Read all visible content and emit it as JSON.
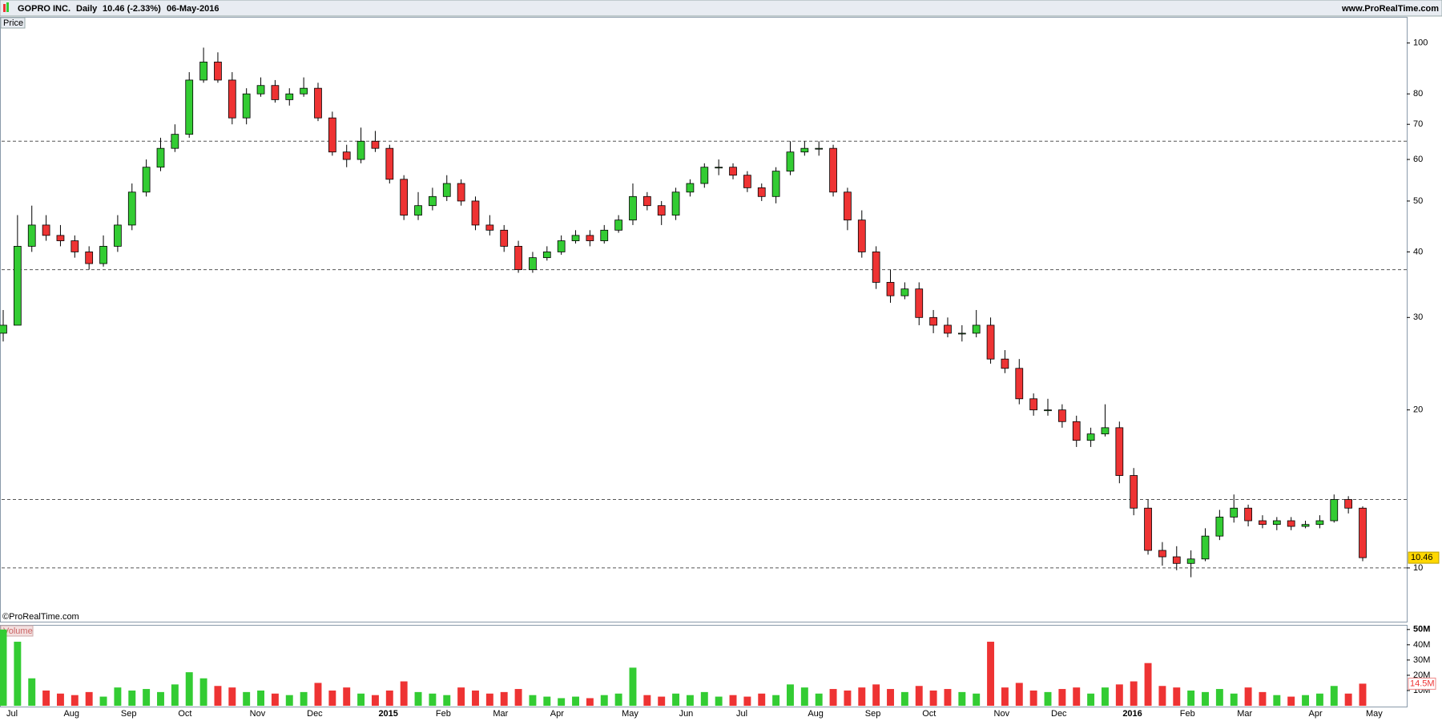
{
  "header": {
    "symbol": "GOPRO INC.",
    "period": "Daily",
    "quote": "10.46 (-2.33%)",
    "date": "06-May-2016",
    "site": "www.ProRealTime.com",
    "copyright": "©ProRealTime.com"
  },
  "chart_data": [
    {
      "type": "candlestick",
      "title": "Price",
      "log_scale": true,
      "up_color": "#33cc33",
      "down_color": "#ee3333",
      "level_color": "#555555",
      "categories": [
        "Jul",
        null,
        null,
        null,
        "Aug",
        null,
        null,
        null,
        "Sep",
        null,
        null,
        null,
        "Oct",
        null,
        null,
        null,
        null,
        "Nov",
        null,
        null,
        null,
        "Dec",
        null,
        null,
        null,
        null,
        "2015",
        null,
        null,
        null,
        "Feb",
        null,
        null,
        null,
        "Mar",
        null,
        null,
        null,
        "Apr",
        null,
        null,
        null,
        null,
        "May",
        null,
        null,
        null,
        "Jun",
        null,
        null,
        null,
        "Jul",
        null,
        null,
        null,
        null,
        "Aug",
        null,
        null,
        null,
        "Sep",
        null,
        null,
        null,
        "Oct",
        null,
        null,
        null,
        null,
        "Nov",
        null,
        null,
        null,
        "Dec",
        null,
        null,
        null,
        null,
        "2016",
        null,
        null,
        null,
        "Feb",
        null,
        null,
        null,
        "Mar",
        null,
        null,
        null,
        null,
        "Apr",
        null,
        null,
        null,
        "May"
      ],
      "open": [
        28,
        29,
        41,
        45,
        43,
        42,
        40,
        38,
        41,
        45,
        52,
        58,
        63,
        67,
        85,
        92,
        85,
        72,
        80,
        83,
        78,
        80,
        82,
        72,
        62,
        60,
        65,
        63,
        55,
        47,
        49,
        51,
        54,
        50,
        45,
        44,
        41,
        37,
        39,
        40,
        42,
        43,
        42,
        44,
        46,
        51,
        49,
        47,
        52,
        54,
        58,
        58,
        56,
        53,
        51,
        57,
        62,
        63,
        63,
        52,
        46,
        40,
        35,
        33,
        34,
        30,
        29,
        28,
        28,
        29,
        25,
        24,
        21,
        20,
        20,
        19,
        17.5,
        18,
        18.5,
        15,
        13,
        10.8,
        10.5,
        10.2,
        10.4,
        11.5,
        12.5,
        13,
        12.3,
        12.1,
        12.3,
        12,
        12.1,
        12.3,
        13.5,
        13
      ],
      "high": [
        31,
        47,
        49,
        47,
        45,
        43,
        41,
        43,
        47,
        54,
        60,
        66,
        70,
        88,
        98,
        96,
        88,
        82,
        86,
        85,
        82,
        86,
        84,
        74,
        64,
        69,
        68,
        64,
        56,
        52,
        53,
        56,
        55,
        51,
        47,
        45,
        42,
        40,
        41,
        43,
        44,
        44,
        45,
        47,
        54,
        52,
        50,
        53,
        55,
        59,
        60,
        59,
        57,
        54,
        58,
        65,
        65,
        65,
        64,
        53,
        48,
        41,
        37,
        35,
        35,
        31,
        30,
        29,
        31,
        30,
        26,
        25,
        21.5,
        21,
        20.5,
        19.5,
        18.5,
        20.5,
        19,
        15.5,
        13.5,
        11.2,
        11,
        10.8,
        11.9,
        12.9,
        13.8,
        13.2,
        12.6,
        12.5,
        12.5,
        12.3,
        12.6,
        13.8,
        13.7,
        13.1
      ],
      "low": [
        27,
        29,
        40,
        42,
        41,
        39,
        37,
        37.5,
        40,
        44,
        51,
        57,
        62,
        66,
        84,
        84,
        70,
        70,
        79,
        77,
        76,
        79,
        71,
        61,
        58,
        59,
        62,
        54,
        46,
        46,
        48,
        50,
        49,
        44,
        43,
        40,
        36.5,
        36.5,
        38.5,
        39.5,
        41.5,
        41,
        41.5,
        43.5,
        45,
        48,
        45,
        46,
        51,
        53,
        56,
        55,
        52,
        50,
        49.5,
        56,
        61,
        61,
        51,
        44,
        39,
        34,
        32,
        32.5,
        29,
        28,
        27.5,
        27,
        27.5,
        24.5,
        23.5,
        20.5,
        19.5,
        19.5,
        18.5,
        17,
        17,
        17.8,
        14.5,
        12.6,
        10.6,
        10.1,
        9.9,
        9.6,
        10.3,
        11.3,
        12.2,
        12,
        11.9,
        11.8,
        11.8,
        11.9,
        11.9,
        12.2,
        12.7,
        10.3
      ],
      "close": [
        29,
        41,
        45,
        43,
        42,
        40,
        38,
        41,
        45,
        52,
        58,
        63,
        67,
        85,
        92,
        85,
        72,
        80,
        83,
        78,
        80,
        82,
        72,
        62,
        60,
        65,
        63,
        55,
        47,
        49,
        51,
        54,
        50,
        45,
        44,
        41,
        37,
        39,
        40,
        42,
        43,
        42,
        44,
        46,
        51,
        49,
        47,
        52,
        54,
        58,
        58,
        56,
        53,
        51,
        57,
        62,
        63,
        63,
        52,
        46,
        40,
        35,
        33,
        34,
        30,
        29,
        28,
        28,
        29,
        25,
        24,
        21,
        20,
        20,
        19,
        17.5,
        18,
        18.5,
        15,
        13,
        10.8,
        10.5,
        10.2,
        10.4,
        11.5,
        12.5,
        13,
        12.3,
        12.1,
        12.3,
        12,
        12.1,
        12.3,
        13.5,
        13,
        10.46
      ],
      "levels": [
        65,
        37,
        13.5,
        10
      ],
      "ylim": [
        7.9,
        111
      ],
      "yticks": [
        10,
        20,
        30,
        40,
        50,
        60,
        70,
        80,
        100
      ]
    },
    {
      "type": "bar",
      "title": "Volume",
      "values": [
        50000000.0,
        42000000.0,
        18000000.0,
        10000000.0,
        8000000.0,
        7000000.0,
        9000000.0,
        6000000.0,
        12000000.0,
        10000000.0,
        11000000.0,
        9000000.0,
        14000000.0,
        22000000.0,
        18000000.0,
        13000000.0,
        12000000.0,
        9000000.0,
        10000000.0,
        8000000.0,
        7000000.0,
        9000000.0,
        15000000.0,
        10000000.0,
        12000000.0,
        8000000.0,
        7000000.0,
        10000000.0,
        16000000.0,
        9000000.0,
        8000000.0,
        7000000.0,
        12000000.0,
        10000000.0,
        8000000.0,
        9000000.0,
        11000000.0,
        7000000.0,
        6000000.0,
        5000000.0,
        6000000.0,
        5000000.0,
        7000000.0,
        8000000.0,
        25000000.0,
        7000000.0,
        6000000.0,
        8000000.0,
        7000000.0,
        9000000.0,
        6000000.0,
        7000000.0,
        6000000.0,
        8000000.0,
        7000000.0,
        14000000.0,
        12000000.0,
        8000000.0,
        11000000.0,
        10000000.0,
        12000000.0,
        14000000.0,
        11000000.0,
        9000000.0,
        13000000.0,
        10000000.0,
        11000000.0,
        9000000.0,
        8000000.0,
        42000000.0,
        12000000.0,
        15000000.0,
        10000000.0,
        9000000.0,
        11000000.0,
        12000000.0,
        8000000.0,
        12000000.0,
        14000000.0,
        16000000.0,
        28000000.0,
        13000000.0,
        12000000.0,
        10000000.0,
        9000000.0,
        11000000.0,
        8000000.0,
        12000000.0,
        9000000.0,
        7000000.0,
        6000000.0,
        7000000.0,
        8000000.0,
        13000000.0,
        8000000.0,
        14500000.0
      ],
      "marker": {
        "value": 14500000,
        "label": "14.5M"
      },
      "ylim": [
        0,
        52000000
      ],
      "yticks": [
        {
          "value": 50000000,
          "label": "50M"
        },
        {
          "value": 40000000,
          "label": "40M"
        },
        {
          "value": 30000000,
          "label": "30M"
        },
        {
          "value": 20000000,
          "label": "20M"
        },
        {
          "value": 10000000,
          "label": "10M"
        }
      ]
    }
  ]
}
